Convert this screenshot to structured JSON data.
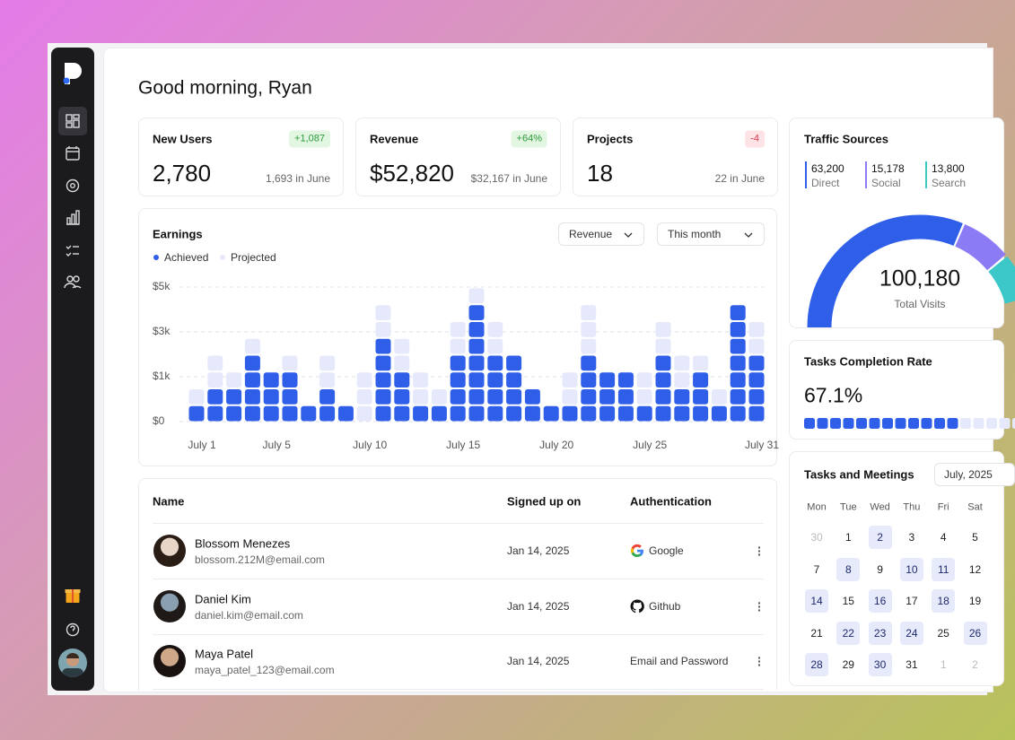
{
  "greeting": "Good morning, Ryan",
  "stats": [
    {
      "label": "New Users",
      "value": "2,780",
      "change": "+1,087",
      "previous": "1,693 in June",
      "trend": "up"
    },
    {
      "label": "Revenue",
      "value": "$52,820",
      "change": "+64%",
      "previous": "$32,167 in June",
      "trend": "up"
    },
    {
      "label": "Projects",
      "value": "18",
      "change": "-4",
      "previous": "22 in June",
      "trend": "down"
    }
  ],
  "chart_data": {
    "type": "bar",
    "title": "Earnings",
    "controls": [
      "Revenue",
      "This month"
    ],
    "categories": [
      "July 1",
      null,
      null,
      null,
      "July 5",
      null,
      null,
      null,
      null,
      "July 10",
      null,
      null,
      null,
      null,
      "July 15",
      null,
      null,
      null,
      null,
      "July 20",
      null,
      null,
      null,
      null,
      "July 25",
      null,
      null,
      null,
      null,
      null,
      "July 31"
    ],
    "series": [
      {
        "name": "Achieved",
        "color": "#2f5fe8",
        "values": [
          375,
          750,
          750,
          2000,
          1250,
          1250,
          375,
          750,
          375,
          0,
          2750,
          1250,
          375,
          375,
          2000,
          4250,
          2000,
          2000,
          750,
          375,
          375,
          2000,
          1250,
          1250,
          375,
          2000,
          750,
          1250,
          375,
          4250,
          2000
        ]
      },
      {
        "name": "Projected",
        "color": "#e6e9fb",
        "values": [
          375,
          1250,
          500,
          750,
          0,
          750,
          0,
          1250,
          0,
          1250,
          1500,
          1500,
          875,
          375,
          1500,
          750,
          1500,
          0,
          0,
          0,
          875,
          2250,
          0,
          0,
          875,
          1500,
          1250,
          750,
          375,
          0,
          1500
        ]
      }
    ],
    "ylim": [
      0,
      5000
    ],
    "yticks": [
      {
        "value": 0,
        "label": "$0"
      },
      {
        "value": 1000,
        "label": "$1k"
      },
      {
        "value": 3000,
        "label": "$3k"
      },
      {
        "value": 5000,
        "label": "$5k"
      }
    ],
    "grid": true
  },
  "traffic": {
    "title": "Traffic Sources",
    "sources": [
      {
        "name": "Direct",
        "value": 63200,
        "label": "63,200",
        "color": "#2f5fe8"
      },
      {
        "name": "Social",
        "value": 15178,
        "label": "15,178",
        "color": "#8b7cf6"
      },
      {
        "name": "Search",
        "value": 13800,
        "label": "13,800",
        "color": "#3cc8c8"
      }
    ],
    "total": {
      "value": 100180,
      "label": "100,180"
    },
    "caption": "Total Visits"
  },
  "completion": {
    "title": "Tasks Completion Rate",
    "value": 67.1,
    "label": "67.1%"
  },
  "calendar": {
    "title": "Tasks and Meetings",
    "month": "July, 2025",
    "weekdays": [
      "Mon",
      "Tue",
      "Wed",
      "Thu",
      "Fri",
      "Sat"
    ],
    "weeks": [
      [
        {
          "day": 30,
          "muted": true
        },
        {
          "day": 1
        },
        {
          "day": 2,
          "highlight": true
        },
        {
          "day": 3
        },
        {
          "day": 4
        },
        {
          "day": 5
        }
      ],
      [
        {
          "day": 7
        },
        {
          "day": 8,
          "highlight": true
        },
        {
          "day": 9
        },
        {
          "day": 10,
          "highlight": true
        },
        {
          "day": 11,
          "highlight": true
        },
        {
          "day": 12
        }
      ],
      [
        {
          "day": 14,
          "highlight": true
        },
        {
          "day": 15
        },
        {
          "day": 16,
          "highlight": true
        },
        {
          "day": 17
        },
        {
          "day": 18,
          "highlight": true
        },
        {
          "day": 19
        }
      ],
      [
        {
          "day": 21
        },
        {
          "day": 22,
          "highlight": true
        },
        {
          "day": 23,
          "highlight": true
        },
        {
          "day": 24,
          "highlight": true
        },
        {
          "day": 25
        },
        {
          "day": 26,
          "highlight": true
        }
      ],
      [
        {
          "day": 28,
          "highlight": true
        },
        {
          "day": 29
        },
        {
          "day": 30,
          "highlight": true
        },
        {
          "day": 31
        },
        {
          "day": 1,
          "muted": true
        },
        {
          "day": 2,
          "muted": true
        }
      ]
    ]
  },
  "table": {
    "columns": [
      "Name",
      "Signed up on",
      "Authentication"
    ],
    "rows": [
      {
        "name": "Blossom Menezes",
        "email": "blossom.212M@email.com",
        "date": "Jan 14, 2025",
        "auth": "Google"
      },
      {
        "name": "Daniel Kim",
        "email": "daniel.kim@email.com",
        "date": "Jan 14, 2025",
        "auth": "Github"
      },
      {
        "name": "Maya Patel",
        "email": "maya_patel_123@email.com",
        "date": "Jan 14, 2025",
        "auth": "Email and Password"
      }
    ]
  }
}
